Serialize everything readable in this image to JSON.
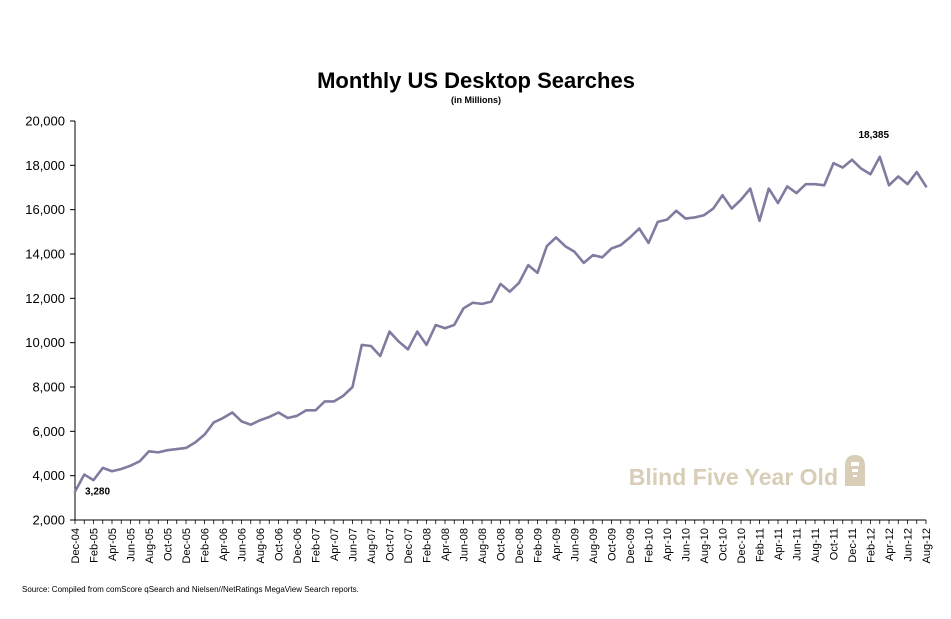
{
  "chart_data": {
    "type": "line",
    "title": "Monthly US Desktop Searches",
    "subtitle": "(in Millions)",
    "xlabel": "",
    "ylabel": "",
    "ylim": [
      2000,
      20000
    ],
    "yticks": [
      2000,
      4000,
      6000,
      8000,
      10000,
      12000,
      14000,
      16000,
      18000,
      20000
    ],
    "ytick_labels": [
      "2,000",
      "4,000",
      "6,000",
      "8,000",
      "10,000",
      "12,000",
      "14,000",
      "16,000",
      "18,000",
      "20,000"
    ],
    "grid": false,
    "legend": "none",
    "line_color": "#7f7ca0",
    "x": [
      "Dec-04",
      "Jan-05",
      "Feb-05",
      "Mar-05",
      "Apr-05",
      "May-05",
      "Jun-05",
      "Jul-05",
      "Aug-05",
      "Sep-05",
      "Oct-05",
      "Nov-05",
      "Dec-05",
      "Jan-06",
      "Feb-06",
      "Mar-06",
      "Apr-06",
      "May-06",
      "Jun-06",
      "Jul-06",
      "Aug-06",
      "Sep-06",
      "Oct-06",
      "Nov-06",
      "Dec-06",
      "Jan-07",
      "Feb-07",
      "Mar-07",
      "Apr-07",
      "May-07",
      "Jun-07",
      "Jul-07",
      "Aug-07",
      "Sep-07",
      "Oct-07",
      "Nov-07",
      "Dec-07",
      "Jan-08",
      "Feb-08",
      "Mar-08",
      "Apr-08",
      "May-08",
      "Jun-08",
      "Jul-08",
      "Aug-08",
      "Sep-08",
      "Oct-08",
      "Nov-08",
      "Dec-08",
      "Jan-09",
      "Feb-09",
      "Mar-09",
      "Apr-09",
      "May-09",
      "Jun-09",
      "Jul-09",
      "Aug-09",
      "Sep-09",
      "Oct-09",
      "Nov-09",
      "Dec-09",
      "Jan-10",
      "Feb-10",
      "Mar-10",
      "Apr-10",
      "May-10",
      "Jun-10",
      "Jul-10",
      "Aug-10",
      "Sep-10",
      "Oct-10",
      "Nov-10",
      "Dec-10",
      "Jan-11",
      "Feb-11",
      "Mar-11",
      "Apr-11",
      "May-11",
      "Jun-11",
      "Jul-11",
      "Aug-11",
      "Sep-11",
      "Oct-11",
      "Nov-11",
      "Dec-11",
      "Jan-12",
      "Feb-12",
      "Mar-12",
      "Apr-12",
      "May-12",
      "Jun-12",
      "Jul-12",
      "Aug-12"
    ],
    "x_tick_labels": [
      "Dec-04",
      "Feb-05",
      "Apr-05",
      "Jun-05",
      "Aug-05",
      "Oct-05",
      "Dec-05",
      "Feb-06",
      "Apr-06",
      "Jun-06",
      "Aug-06",
      "Oct-06",
      "Dec-06",
      "Feb-07",
      "Apr-07",
      "Jun-07",
      "Aug-07",
      "Oct-07",
      "Dec-07",
      "Feb-08",
      "Apr-08",
      "Jun-08",
      "Aug-08",
      "Oct-08",
      "Dec-08",
      "Feb-09",
      "Apr-09",
      "Jun-09",
      "Aug-09",
      "Oct-09",
      "Dec-09",
      "Feb-10",
      "Apr-10",
      "Jun-10",
      "Aug-10",
      "Oct-10",
      "Dec-10",
      "Feb-11",
      "Apr-11",
      "Jun-11",
      "Aug-11",
      "Oct-11",
      "Dec-11",
      "Feb-12",
      "Apr-12",
      "Jun-12",
      "Aug-12"
    ],
    "series": [
      {
        "values": [
          3280,
          4050,
          3800,
          4350,
          4200,
          4300,
          4450,
          4650,
          5100,
          5050,
          5150,
          5200,
          5250,
          5500,
          5850,
          6400,
          6600,
          6850,
          6450,
          6300,
          6500,
          6650,
          6850,
          6600,
          6700,
          6950,
          6950,
          7350,
          7350,
          7600,
          8000,
          9900,
          9850,
          9400,
          10500,
          10050,
          9700,
          10500,
          9900,
          10800,
          10650,
          10800,
          11550,
          11800,
          11750,
          11850,
          12650,
          12300,
          12700,
          13500,
          13150,
          14350,
          14750,
          14350,
          14100,
          13600,
          13950,
          13850,
          14250,
          14400,
          14750,
          15150,
          14500,
          15450,
          15550,
          15950,
          15600,
          15650,
          15750,
          16050,
          16650,
          16050,
          16450,
          16950,
          15500,
          16950,
          16300,
          17050,
          16750,
          17150,
          17150,
          17100,
          18100,
          17900,
          18250,
          17850,
          17600,
          18385,
          17100,
          17500,
          17150,
          17700,
          17050
        ]
      }
    ],
    "annotations": [
      {
        "label": "3,280",
        "x": "Dec-04",
        "value": 3280
      },
      {
        "label": "18,385",
        "x": "Mar-12",
        "value": 18385
      }
    ],
    "source": "Source: Compiled from comScore qSearch and Nielsen//NetRatings MegaView Search reports.",
    "watermark": "Blind Five Year Old"
  }
}
